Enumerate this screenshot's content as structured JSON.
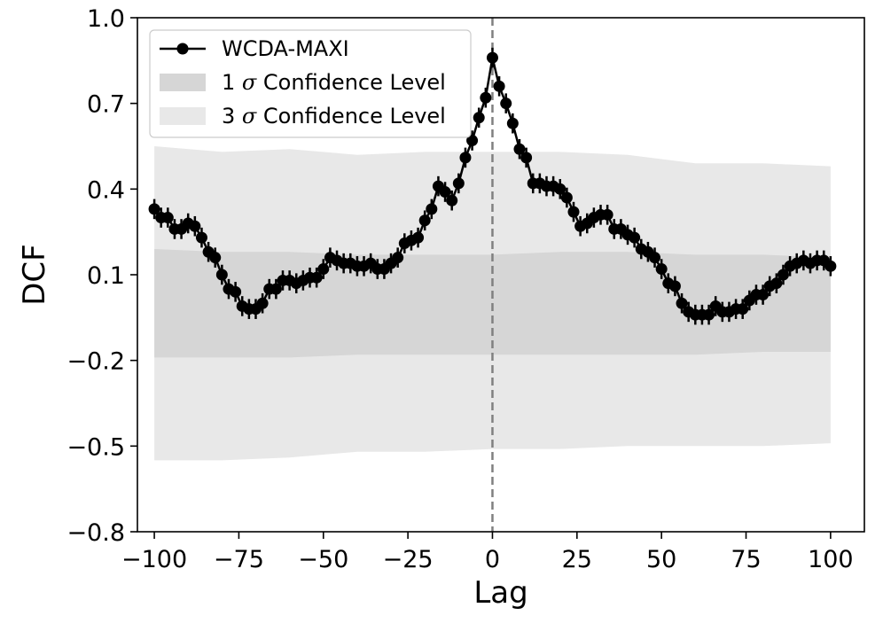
{
  "chart_data": {
    "type": "line",
    "title": "",
    "xlabel": "Lag",
    "ylabel": "DCF",
    "xlim": [
      -105,
      110
    ],
    "ylim": [
      -0.8,
      1.0
    ],
    "xticks": [
      -100,
      -75,
      -50,
      -25,
      0,
      25,
      50,
      75,
      100
    ],
    "xtick_labels": [
      "−100",
      "−75",
      "−50",
      "−25",
      "0",
      "25",
      "50",
      "75",
      "100"
    ],
    "yticks": [
      -0.8,
      -0.5,
      -0.2,
      0.1,
      0.4,
      0.7,
      1.0
    ],
    "ytick_labels": [
      "−0.8",
      "−0.5",
      "−0.2",
      "0.1",
      "0.4",
      "0.7",
      "1.0"
    ],
    "grid": false,
    "legend_position": "top-left",
    "vline": {
      "x": 0,
      "style": "dashed",
      "color": "#808080"
    },
    "series": [
      {
        "name": "WCDA-MAXI",
        "color": "#000000",
        "marker": "circle",
        "x": [
          -100,
          -98,
          -96,
          -94,
          -92,
          -90,
          -88,
          -86,
          -84,
          -82,
          -80,
          -78,
          -76,
          -74,
          -72,
          -70,
          -68,
          -66,
          -64,
          -62,
          -60,
          -58,
          -56,
          -54,
          -52,
          -50,
          -48,
          -46,
          -44,
          -42,
          -40,
          -38,
          -36,
          -34,
          -32,
          -30,
          -28,
          -26,
          -24,
          -22,
          -20,
          -18,
          -16,
          -14,
          -12,
          -10,
          -8,
          -6,
          -4,
          -2,
          0,
          2,
          4,
          6,
          8,
          10,
          12,
          14,
          16,
          18,
          20,
          22,
          24,
          26,
          28,
          30,
          32,
          34,
          36,
          38,
          40,
          42,
          44,
          46,
          48,
          50,
          52,
          54,
          56,
          58,
          60,
          62,
          64,
          66,
          68,
          70,
          72,
          74,
          76,
          78,
          80,
          82,
          84,
          86,
          88,
          90,
          92,
          94,
          96,
          98,
          100
        ],
        "y": [
          0.33,
          0.3,
          0.3,
          0.26,
          0.26,
          0.28,
          0.27,
          0.23,
          0.18,
          0.16,
          0.1,
          0.05,
          0.04,
          -0.01,
          -0.02,
          -0.02,
          0.0,
          0.05,
          0.05,
          0.08,
          0.08,
          0.07,
          0.08,
          0.09,
          0.09,
          0.12,
          0.16,
          0.15,
          0.14,
          0.14,
          0.13,
          0.13,
          0.14,
          0.12,
          0.12,
          0.14,
          0.16,
          0.21,
          0.22,
          0.23,
          0.29,
          0.33,
          0.41,
          0.39,
          0.36,
          0.42,
          0.51,
          0.57,
          0.65,
          0.72,
          0.86,
          0.76,
          0.7,
          0.63,
          0.54,
          0.51,
          0.42,
          0.42,
          0.41,
          0.41,
          0.4,
          0.37,
          0.32,
          0.27,
          0.28,
          0.3,
          0.31,
          0.31,
          0.26,
          0.26,
          0.24,
          0.23,
          0.19,
          0.18,
          0.16,
          0.12,
          0.07,
          0.06,
          0.0,
          -0.03,
          -0.04,
          -0.04,
          -0.04,
          -0.01,
          -0.03,
          -0.03,
          -0.02,
          -0.02,
          0.01,
          0.03,
          0.03,
          0.06,
          0.07,
          0.1,
          0.13,
          0.14,
          0.15,
          0.14,
          0.15,
          0.15,
          0.13
        ],
        "error": 0.035
      }
    ],
    "bands": [
      {
        "name": "1 σ Confidence Level",
        "color": "#d6d6d6",
        "x": [
          -100,
          -80,
          -60,
          -40,
          -20,
          0,
          20,
          40,
          60,
          80,
          100
        ],
        "upper": [
          0.19,
          0.18,
          0.18,
          0.17,
          0.17,
          0.17,
          0.18,
          0.18,
          0.17,
          0.17,
          0.16
        ],
        "lower": [
          -0.19,
          -0.19,
          -0.19,
          -0.18,
          -0.18,
          -0.18,
          -0.18,
          -0.18,
          -0.18,
          -0.17,
          -0.17
        ]
      },
      {
        "name": "3 σ Confidence Level",
        "color": "#e8e8e8",
        "x": [
          -100,
          -80,
          -60,
          -40,
          -20,
          0,
          20,
          40,
          60,
          80,
          100
        ],
        "upper": [
          0.55,
          0.53,
          0.54,
          0.52,
          0.53,
          0.53,
          0.53,
          0.52,
          0.49,
          0.49,
          0.48
        ],
        "lower": [
          -0.55,
          -0.55,
          -0.54,
          -0.52,
          -0.52,
          -0.51,
          -0.51,
          -0.5,
          -0.5,
          -0.5,
          -0.49
        ]
      }
    ],
    "legend": [
      {
        "prefix": "WCDA-MAXI",
        "sigma": "",
        "suffix": ""
      },
      {
        "prefix": "1 ",
        "sigma": "σ",
        "suffix": " Confidence Level"
      },
      {
        "prefix": "3 ",
        "sigma": "σ",
        "suffix": " Confidence Level"
      }
    ]
  }
}
